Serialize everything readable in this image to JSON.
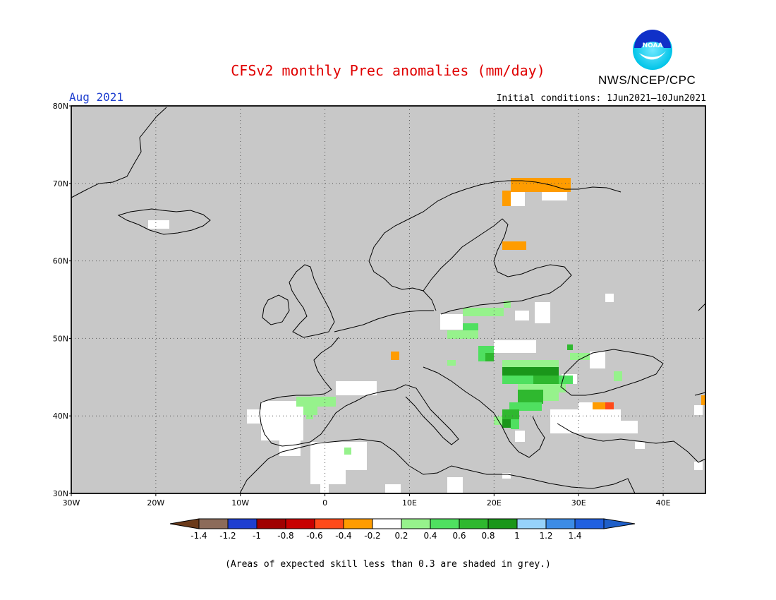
{
  "header": {
    "title": "CFSv2 monthly Prec anomalies (mm/day)",
    "agency": "NWS/NCEP/CPC",
    "logo_text": "NOAA",
    "period": "Aug 2021",
    "initial_conditions": "Initial conditions: 1Jun2021–10Jun2021"
  },
  "map": {
    "lat_labels": [
      "80N",
      "70N",
      "60N",
      "50N",
      "40N",
      "30N"
    ],
    "lon_labels": [
      "30W",
      "20W",
      "10W",
      "0",
      "10E",
      "20E",
      "30E",
      "40E"
    ],
    "background_color": "#c8c8c8",
    "grid": "dotted",
    "anomaly_regions": [
      {
        "name": "northern-scandinavia",
        "value": -0.4
      },
      {
        "name": "central-finland",
        "value": -0.4
      },
      {
        "name": "alps",
        "value": -0.4
      },
      {
        "name": "central-turkey",
        "value": -0.4
      },
      {
        "name": "central-turkey-east",
        "value": -0.6
      },
      {
        "name": "east-black-sea",
        "value": -0.4
      },
      {
        "name": "poland",
        "value": 0.3
      },
      {
        "name": "czechia-slovakia",
        "value": 0.3
      },
      {
        "name": "pannonian-basin",
        "value": 0.7
      },
      {
        "name": "romania",
        "value": 0.7
      },
      {
        "name": "bulgaria",
        "value": 0.7
      },
      {
        "name": "western-greece",
        "value": 0.5
      },
      {
        "name": "northern-spain",
        "value": 0.3
      },
      {
        "name": "iberia",
        "value": 0.0
      },
      {
        "name": "north-africa",
        "value": 0.0
      },
      {
        "name": "anatolia",
        "value": 0.0
      }
    ]
  },
  "colorbar": {
    "ticks": [
      "-1.4",
      "-1.2",
      "-1",
      "-0.8",
      "-0.6",
      "-0.4",
      "-0.2",
      "0.2",
      "0.4",
      "0.6",
      "0.8",
      "1",
      "1.2",
      "1.4"
    ],
    "colors": [
      "#6b3a1a",
      "#8c6b5a",
      "#1f3fd0",
      "#a00000",
      "#c80000",
      "#ff4a1a",
      "#ff9c00",
      "#ffffff",
      "#96f28c",
      "#4fe060",
      "#2fb82f",
      "#1a961a",
      "#96d2fa",
      "#3c8ce6",
      "#2060e0",
      "#1f5fc8"
    ]
  },
  "footnote": "(Areas of expected skill less than 0.3 are shaded in grey.)"
}
